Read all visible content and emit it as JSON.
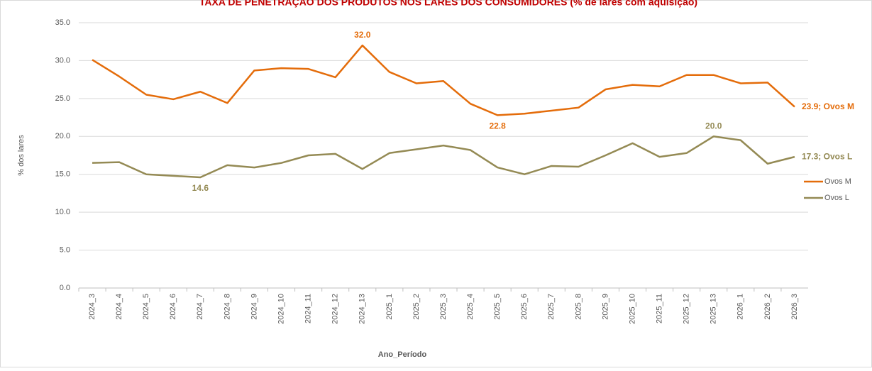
{
  "chart_data": {
    "type": "line",
    "title": "TAXA DE PENETRAÇÃO DOS PRODUTOS NOS LARES DOS CONSUMIDORES (% de lares com aquisição)",
    "x_label": "Ano_Período",
    "y_label": "% dos lares",
    "categories": [
      "2024_3",
      "2024_4",
      "2024_5",
      "2024_6",
      "2024_7",
      "2024_8",
      "2024_9",
      "2024_10",
      "2024_11",
      "2024_12",
      "2024_13",
      "2025_1",
      "2025_2",
      "2025_3",
      "2025_4",
      "2025_5",
      "2025_6",
      "2025_7",
      "2025_8",
      "2025_9",
      "2025_10",
      "2025_11",
      "2025_12",
      "2025_13",
      "2026_1",
      "2026_2",
      "2026_3"
    ],
    "series": [
      {
        "name": "Ovos M",
        "color": "#e46c0a",
        "values": [
          30.1,
          27.9,
          25.5,
          24.9,
          25.9,
          24.4,
          28.7,
          29.0,
          28.9,
          27.8,
          32.0,
          28.5,
          27.0,
          27.3,
          24.3,
          22.8,
          23.0,
          23.4,
          23.8,
          26.2,
          26.8,
          26.6,
          28.1,
          28.1,
          27.0,
          27.1,
          23.9
        ],
        "value_labels": [
          null,
          null,
          null,
          null,
          null,
          null,
          null,
          null,
          null,
          null,
          "32.0",
          null,
          null,
          null,
          null,
          "22.8",
          null,
          null,
          null,
          null,
          null,
          null,
          null,
          null,
          null,
          null,
          "23.9; Ovos M"
        ]
      },
      {
        "name": "Ovos L",
        "color": "#948a54",
        "values": [
          16.5,
          16.6,
          15.0,
          14.8,
          14.6,
          16.2,
          15.9,
          16.5,
          17.5,
          17.7,
          15.7,
          17.8,
          18.3,
          18.8,
          18.2,
          15.9,
          15.0,
          16.1,
          16.0,
          17.5,
          19.1,
          17.3,
          17.8,
          20.0,
          19.5,
          16.4,
          17.3
        ],
        "value_labels": [
          null,
          null,
          null,
          null,
          "14.6",
          null,
          null,
          null,
          null,
          null,
          null,
          null,
          null,
          null,
          null,
          null,
          null,
          null,
          null,
          null,
          null,
          null,
          null,
          "20.0",
          null,
          null,
          "17.3; Ovos L"
        ]
      }
    ],
    "ylim": [
      0,
      35
    ],
    "yticks": [
      {
        "value": 0,
        "label": "0.0"
      },
      {
        "value": 5,
        "label": "5.0"
      },
      {
        "value": 10,
        "label": "10.0"
      },
      {
        "value": 15,
        "label": "15.0"
      },
      {
        "value": 20,
        "label": "20.0"
      },
      {
        "value": 25,
        "label": "25.0"
      },
      {
        "value": 30,
        "label": "30.0"
      },
      {
        "value": 35,
        "label": "35.0"
      }
    ],
    "grid": true,
    "legend": "right"
  }
}
